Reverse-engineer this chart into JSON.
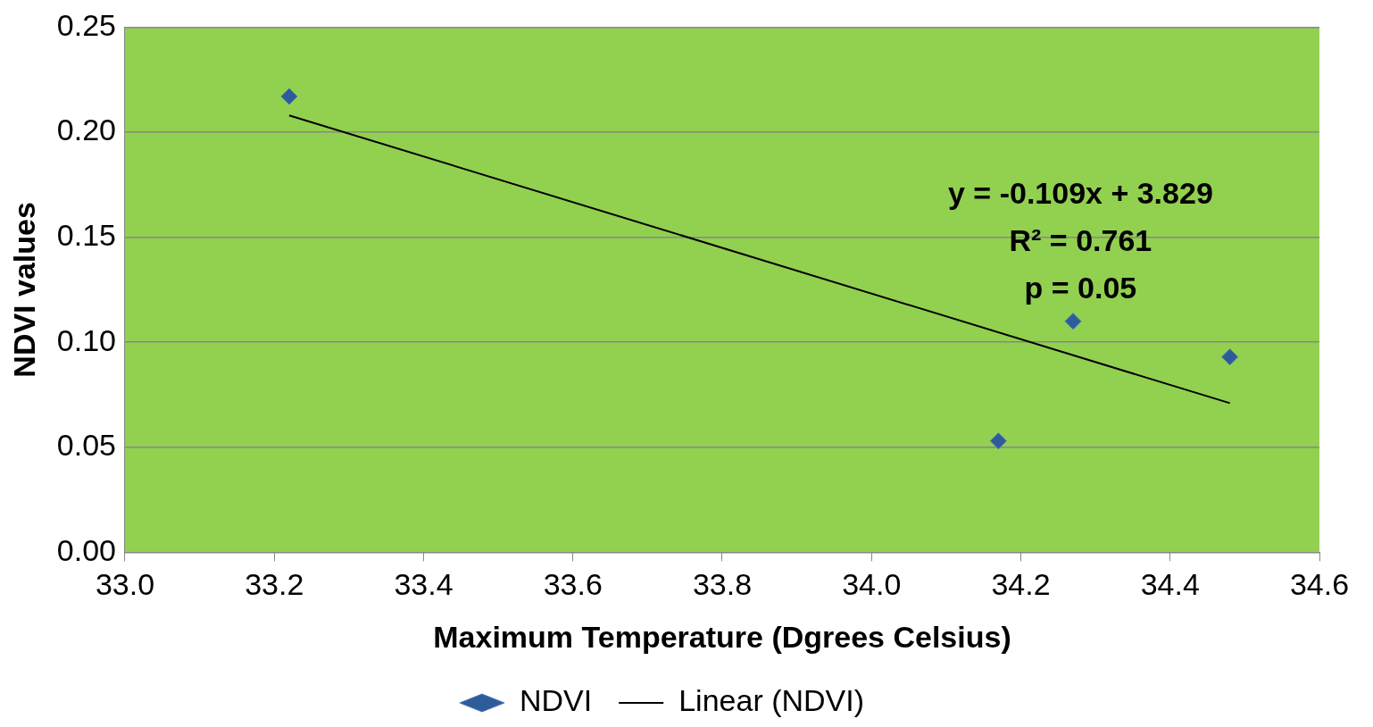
{
  "chart_data": {
    "type": "scatter",
    "xlabel": "Maximum Temperature (Dgrees Celsius)",
    "ylabel": "NDVI values",
    "xlim": [
      33.0,
      34.6
    ],
    "xticks": [
      {
        "value": 33.0,
        "label": "33.0"
      },
      {
        "value": 33.2,
        "label": "33.2"
      },
      {
        "value": 33.4,
        "label": "33.4"
      },
      {
        "value": 33.6,
        "label": "33.6"
      },
      {
        "value": 33.8,
        "label": "33.8"
      },
      {
        "value": 34.0,
        "label": "34.0"
      },
      {
        "value": 34.2,
        "label": "34.2"
      },
      {
        "value": 34.4,
        "label": "34.4"
      },
      {
        "value": 34.6,
        "label": "34.6"
      }
    ],
    "ylim": [
      0,
      0.25
    ],
    "yticks": [
      {
        "value": 0,
        "label": "0.00"
      },
      {
        "value": 0.05,
        "label": "0.05"
      },
      {
        "value": 0.1,
        "label": "0.10"
      },
      {
        "value": 0.15,
        "label": "0.15"
      },
      {
        "value": 0.2,
        "label": "0.20"
      },
      {
        "value": 0.25,
        "label": "0.25"
      }
    ],
    "grid": "y",
    "legend": "bottom",
    "series": [
      {
        "name": "NDVI",
        "type": "scatter",
        "marker": "diamond",
        "color": "#2e5c9a",
        "x": [
          33.22,
          34.17,
          34.27,
          34.48
        ],
        "values": [
          0.217,
          0.053,
          0.11,
          0.093
        ]
      },
      {
        "name": "Linear (NDVI)",
        "type": "line",
        "marker": "none",
        "color": "#000000",
        "x": [
          33.22,
          34.48
        ],
        "values": [
          0.208,
          0.071
        ]
      }
    ],
    "annotations": [
      "y = -0.109x + 3.829",
      "R² = 0.761",
      "p = 0.05"
    ]
  }
}
